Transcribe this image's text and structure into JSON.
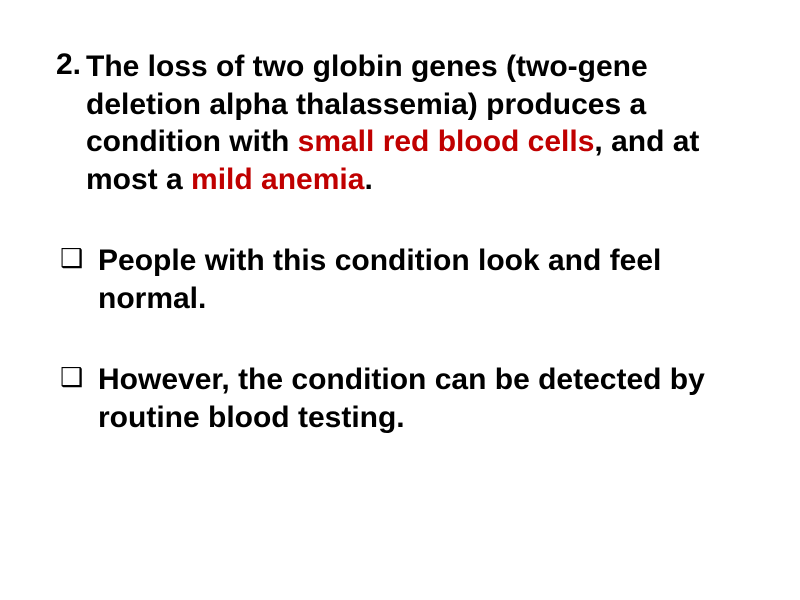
{
  "slide": {
    "background_color": "#ffffff",
    "text_color": "#000000",
    "highlight_color": "#c00000",
    "font_size": 30,
    "font_weight": "bold",
    "font_family": "Arial",
    "items": [
      {
        "marker_type": "number",
        "marker": "2.",
        "spans": [
          {
            "text": "The loss of two globin genes (two-gene deletion alpha thalassemia) produces a condition with ",
            "highlight": false
          },
          {
            "text": "small red blood cells",
            "highlight": true
          },
          {
            "text": ", and at most a ",
            "highlight": false
          },
          {
            "text": "mild anemia",
            "highlight": true
          },
          {
            "text": ".",
            "highlight": false
          }
        ]
      },
      {
        "marker_type": "square",
        "marker": "❑",
        "spans": [
          {
            "text": "People with this condition look and feel normal.",
            "highlight": false
          }
        ]
      },
      {
        "marker_type": "square",
        "marker": "❑",
        "spans": [
          {
            "text": "However, the condition can be detected by routine blood testing.",
            "highlight": false
          }
        ]
      }
    ]
  }
}
